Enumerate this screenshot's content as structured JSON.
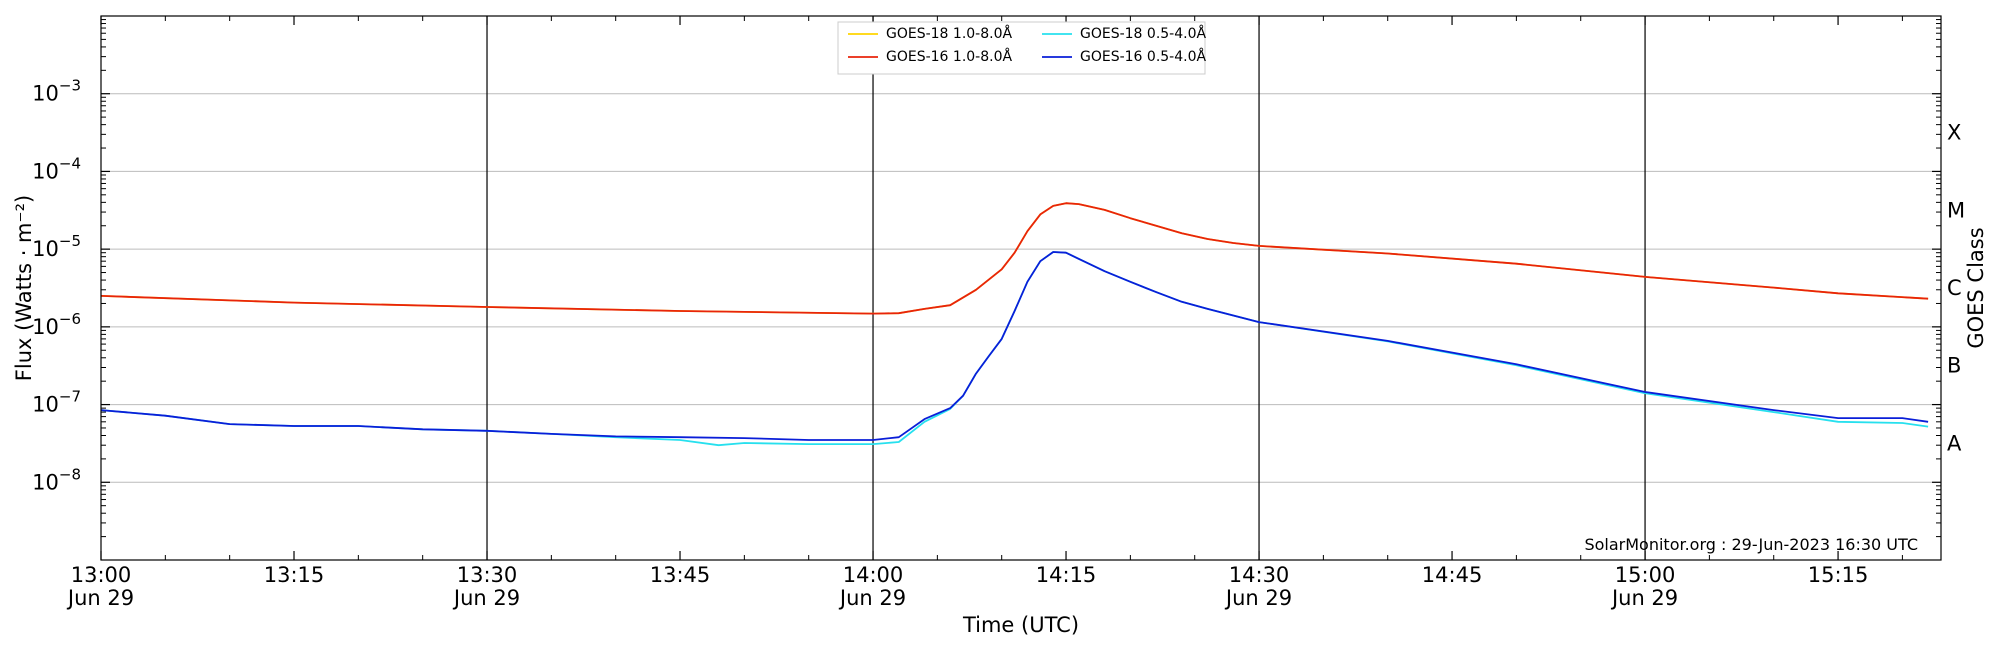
{
  "chart_data": {
    "type": "line",
    "title": "",
    "xlabel": "Time (UTC)",
    "ylabel": "Flux (Watts · m⁻²)",
    "y2label": "GOES Class",
    "yscale": "log",
    "ylim": [
      1e-09,
      0.01
    ],
    "xlim": [
      "13:00",
      "15:23"
    ],
    "grid": "horizontal",
    "legend_position": "top-center",
    "y_ticks": [
      {
        "value": 1e-08,
        "base": "10",
        "exp": "−8"
      },
      {
        "value": 1e-07,
        "base": "10",
        "exp": "−7"
      },
      {
        "value": 1e-06,
        "base": "10",
        "exp": "−6"
      },
      {
        "value": 1e-05,
        "base": "10",
        "exp": "−5"
      },
      {
        "value": 0.0001,
        "base": "10",
        "exp": "−4"
      },
      {
        "value": 0.001,
        "base": "10",
        "exp": "−3"
      }
    ],
    "x_ticks": [
      {
        "time": "13:00",
        "label": "13:00",
        "sublabel": "Jun 29",
        "major": true
      },
      {
        "time": "13:15",
        "label": "13:15",
        "sublabel": "",
        "major": false
      },
      {
        "time": "13:30",
        "label": "13:30",
        "sublabel": "Jun 29",
        "major": true
      },
      {
        "time": "13:45",
        "label": "13:45",
        "sublabel": "",
        "major": false
      },
      {
        "time": "14:00",
        "label": "14:00",
        "sublabel": "Jun 29",
        "major": true
      },
      {
        "time": "14:15",
        "label": "14:15",
        "sublabel": "",
        "major": false
      },
      {
        "time": "14:30",
        "label": "14:30",
        "sublabel": "Jun 29",
        "major": true
      },
      {
        "time": "14:45",
        "label": "14:45",
        "sublabel": "",
        "major": false
      },
      {
        "time": "15:00",
        "label": "15:00",
        "sublabel": "Jun 29",
        "major": true
      },
      {
        "time": "15:15",
        "label": "15:15",
        "sublabel": "",
        "major": false
      }
    ],
    "goes_classes": [
      {
        "label": "A",
        "value": 3.16e-08
      },
      {
        "label": "B",
        "value": 3.16e-07
      },
      {
        "label": "C",
        "value": 3.16e-06
      },
      {
        "label": "M",
        "value": 3.16e-05
      },
      {
        "label": "X",
        "value": 0.000316
      }
    ],
    "series": [
      {
        "name": "GOES-18 1.0-8.0Å",
        "color": "#ffd400",
        "points": [
          [
            "13:00",
            2.5e-06
          ],
          [
            "13:15",
            2.05e-06
          ],
          [
            "13:30",
            1.8e-06
          ],
          [
            "13:45",
            1.6e-06
          ],
          [
            "14:00",
            1.48e-06
          ],
          [
            "14:02",
            1.5e-06
          ],
          [
            "14:04",
            1.7e-06
          ],
          [
            "14:06",
            1.9e-06
          ],
          [
            "14:08",
            3e-06
          ],
          [
            "14:10",
            5.5e-06
          ],
          [
            "14:11",
            9e-06
          ],
          [
            "14:12",
            1.7e-05
          ],
          [
            "14:13",
            2.8e-05
          ],
          [
            "14:14",
            3.6e-05
          ],
          [
            "14:15",
            3.9e-05
          ],
          [
            "14:16",
            3.8e-05
          ],
          [
            "14:18",
            3.2e-05
          ],
          [
            "14:20",
            2.5e-05
          ],
          [
            "14:22",
            2e-05
          ],
          [
            "14:24",
            1.6e-05
          ],
          [
            "14:26",
            1.35e-05
          ],
          [
            "14:28",
            1.2e-05
          ],
          [
            "14:30",
            1.1e-05
          ],
          [
            "14:40",
            8.8e-06
          ],
          [
            "14:50",
            6.5e-06
          ],
          [
            "15:00",
            4.4e-06
          ],
          [
            "15:10",
            3.2e-06
          ],
          [
            "15:15",
            2.7e-06
          ],
          [
            "15:22",
            2.3e-06
          ]
        ]
      },
      {
        "name": "GOES-16 1.0-8.0Å",
        "color": "#e8240b",
        "points": [
          [
            "13:00",
            2.5e-06
          ],
          [
            "13:15",
            2.05e-06
          ],
          [
            "13:30",
            1.8e-06
          ],
          [
            "13:45",
            1.6e-06
          ],
          [
            "14:00",
            1.48e-06
          ],
          [
            "14:02",
            1.5e-06
          ],
          [
            "14:04",
            1.7e-06
          ],
          [
            "14:06",
            1.9e-06
          ],
          [
            "14:08",
            3e-06
          ],
          [
            "14:10",
            5.5e-06
          ],
          [
            "14:11",
            9e-06
          ],
          [
            "14:12",
            1.7e-05
          ],
          [
            "14:13",
            2.8e-05
          ],
          [
            "14:14",
            3.6e-05
          ],
          [
            "14:15",
            3.9e-05
          ],
          [
            "14:16",
            3.8e-05
          ],
          [
            "14:18",
            3.2e-05
          ],
          [
            "14:20",
            2.5e-05
          ],
          [
            "14:22",
            2e-05
          ],
          [
            "14:24",
            1.6e-05
          ],
          [
            "14:26",
            1.35e-05
          ],
          [
            "14:28",
            1.2e-05
          ],
          [
            "14:30",
            1.1e-05
          ],
          [
            "14:40",
            8.8e-06
          ],
          [
            "14:50",
            6.5e-06
          ],
          [
            "15:00",
            4.4e-06
          ],
          [
            "15:10",
            3.2e-06
          ],
          [
            "15:15",
            2.7e-06
          ],
          [
            "15:22",
            2.3e-06
          ]
        ]
      },
      {
        "name": "GOES-18 0.5-4.0Å",
        "color": "#27e0ee",
        "points": [
          [
            "13:00",
            8.5e-08
          ],
          [
            "13:05",
            7.2e-08
          ],
          [
            "13:10",
            5.6e-08
          ],
          [
            "13:15",
            5.3e-08
          ],
          [
            "13:20",
            5.3e-08
          ],
          [
            "13:25",
            4.8e-08
          ],
          [
            "13:30",
            4.6e-08
          ],
          [
            "13:35",
            4.2e-08
          ],
          [
            "13:40",
            3.8e-08
          ],
          [
            "13:45",
            3.5e-08
          ],
          [
            "13:48",
            3e-08
          ],
          [
            "13:50",
            3.2e-08
          ],
          [
            "13:55",
            3.1e-08
          ],
          [
            "14:00",
            3.1e-08
          ],
          [
            "14:02",
            3.3e-08
          ],
          [
            "14:04",
            6e-08
          ],
          [
            "14:06",
            8.8e-08
          ],
          [
            "14:07",
            1.3e-07
          ],
          [
            "14:08",
            2.5e-07
          ],
          [
            "14:09",
            4.2e-07
          ],
          [
            "14:10",
            7e-07
          ],
          [
            "14:11",
            1.6e-06
          ],
          [
            "14:12",
            3.8e-06
          ],
          [
            "14:13",
            7e-06
          ],
          [
            "14:14",
            9.2e-06
          ],
          [
            "14:15",
            9e-06
          ],
          [
            "14:16",
            7.5e-06
          ],
          [
            "14:18",
            5.2e-06
          ],
          [
            "14:20",
            3.8e-06
          ],
          [
            "14:22",
            2.8e-06
          ],
          [
            "14:24",
            2.1e-06
          ],
          [
            "14:26",
            1.7e-06
          ],
          [
            "14:30",
            1.15e-06
          ],
          [
            "14:40",
            6.5e-07
          ],
          [
            "14:50",
            3.2e-07
          ],
          [
            "15:00",
            1.4e-07
          ],
          [
            "15:10",
            8e-08
          ],
          [
            "15:15",
            6e-08
          ],
          [
            "15:20",
            5.8e-08
          ],
          [
            "15:22",
            5.2e-08
          ]
        ]
      },
      {
        "name": "GOES-16 0.5-4.0Å",
        "color": "#0a1ed8",
        "points": [
          [
            "13:00",
            8.5e-08
          ],
          [
            "13:05",
            7.2e-08
          ],
          [
            "13:10",
            5.6e-08
          ],
          [
            "13:15",
            5.3e-08
          ],
          [
            "13:20",
            5.3e-08
          ],
          [
            "13:25",
            4.8e-08
          ],
          [
            "13:30",
            4.6e-08
          ],
          [
            "13:35",
            4.2e-08
          ],
          [
            "13:40",
            3.9e-08
          ],
          [
            "13:45",
            3.8e-08
          ],
          [
            "13:50",
            3.7e-08
          ],
          [
            "13:55",
            3.5e-08
          ],
          [
            "14:00",
            3.5e-08
          ],
          [
            "14:02",
            3.8e-08
          ],
          [
            "14:04",
            6.5e-08
          ],
          [
            "14:06",
            9e-08
          ],
          [
            "14:07",
            1.3e-07
          ],
          [
            "14:08",
            2.5e-07
          ],
          [
            "14:09",
            4.2e-07
          ],
          [
            "14:10",
            7e-07
          ],
          [
            "14:11",
            1.6e-06
          ],
          [
            "14:12",
            3.8e-06
          ],
          [
            "14:13",
            7e-06
          ],
          [
            "14:14",
            9.2e-06
          ],
          [
            "14:15",
            9e-06
          ],
          [
            "14:16",
            7.5e-06
          ],
          [
            "14:18",
            5.2e-06
          ],
          [
            "14:20",
            3.8e-06
          ],
          [
            "14:22",
            2.8e-06
          ],
          [
            "14:24",
            2.1e-06
          ],
          [
            "14:26",
            1.7e-06
          ],
          [
            "14:30",
            1.15e-06
          ],
          [
            "14:40",
            6.6e-07
          ],
          [
            "14:50",
            3.3e-07
          ],
          [
            "15:00",
            1.45e-07
          ],
          [
            "15:10",
            8.5e-08
          ],
          [
            "15:15",
            6.7e-08
          ],
          [
            "15:20",
            6.7e-08
          ],
          [
            "15:22",
            6e-08
          ]
        ]
      }
    ],
    "annotation": "SolarMonitor.org : 29-Jun-2023 16:30 UTC"
  }
}
